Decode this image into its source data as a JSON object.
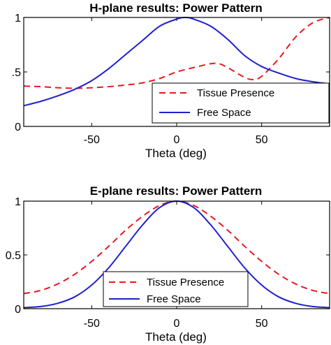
{
  "chart_data": [
    {
      "type": "line",
      "title": "H-plane results: Power Pattern",
      "xlabel": "Theta (deg)",
      "ylabel": "",
      "xlim": [
        -90,
        90
      ],
      "ylim": [
        0,
        1
      ],
      "xticks": [
        "-50",
        "0",
        "50"
      ],
      "xtick_values": [
        -50,
        0,
        50
      ],
      "yticks": [
        "0",
        ".5",
        "1"
      ],
      "ytick_values": [
        0,
        0.5,
        1
      ],
      "legend_position": "bottom-right",
      "series": [
        {
          "name": "Tissue Presence",
          "color": "#e8191e",
          "style": "dashed",
          "x": [
            -90,
            -80,
            -70,
            -60,
            -50,
            -40,
            -30,
            -20,
            -10,
            0,
            10,
            20,
            25,
            30,
            40,
            45,
            50,
            60,
            70,
            80,
            90
          ],
          "y": [
            0.37,
            0.365,
            0.355,
            0.35,
            0.355,
            0.365,
            0.38,
            0.4,
            0.44,
            0.5,
            0.54,
            0.575,
            0.575,
            0.54,
            0.45,
            0.43,
            0.46,
            0.62,
            0.82,
            0.95,
            1.0
          ]
        },
        {
          "name": "Free Space",
          "color": "#1f1fcf",
          "style": "solid",
          "x": [
            -90,
            -80,
            -70,
            -60,
            -50,
            -40,
            -30,
            -20,
            -10,
            0,
            5,
            10,
            20,
            30,
            40,
            50,
            60,
            70,
            80,
            90
          ],
          "y": [
            0.19,
            0.23,
            0.28,
            0.34,
            0.42,
            0.53,
            0.66,
            0.79,
            0.92,
            0.985,
            1.0,
            0.985,
            0.92,
            0.8,
            0.65,
            0.55,
            0.49,
            0.44,
            0.41,
            0.39
          ]
        }
      ]
    },
    {
      "type": "line",
      "title": "E-plane results: Power Pattern",
      "xlabel": "Theta (deg)",
      "ylabel": "",
      "xlim": [
        -90,
        90
      ],
      "ylim": [
        0,
        1
      ],
      "xticks": [
        "-50",
        "0",
        "50"
      ],
      "xtick_values": [
        -50,
        0,
        50
      ],
      "yticks": [
        "0",
        "0.5",
        "1"
      ],
      "ytick_values": [
        0,
        0.5,
        1
      ],
      "legend_position": "bottom-center",
      "series": [
        {
          "name": "Tissue Presence",
          "color": "#e8191e",
          "style": "dashed",
          "x": [
            -90,
            -80,
            -70,
            -60,
            -50,
            -40,
            -30,
            -20,
            -10,
            0,
            10,
            20,
            30,
            40,
            50,
            60,
            70,
            80,
            90
          ],
          "y": [
            0.14,
            0.17,
            0.23,
            0.32,
            0.44,
            0.58,
            0.73,
            0.86,
            0.96,
            1.0,
            0.96,
            0.86,
            0.73,
            0.58,
            0.44,
            0.32,
            0.23,
            0.17,
            0.14
          ]
        },
        {
          "name": "Free Space",
          "color": "#1f1fcf",
          "style": "solid",
          "x": [
            -90,
            -80,
            -70,
            -60,
            -50,
            -40,
            -30,
            -20,
            -10,
            0,
            10,
            20,
            30,
            40,
            50,
            60,
            70,
            80,
            90
          ],
          "y": [
            0.01,
            0.02,
            0.05,
            0.11,
            0.22,
            0.38,
            0.58,
            0.78,
            0.94,
            1.0,
            0.94,
            0.78,
            0.58,
            0.38,
            0.22,
            0.11,
            0.05,
            0.02,
            0.01
          ]
        }
      ]
    }
  ]
}
